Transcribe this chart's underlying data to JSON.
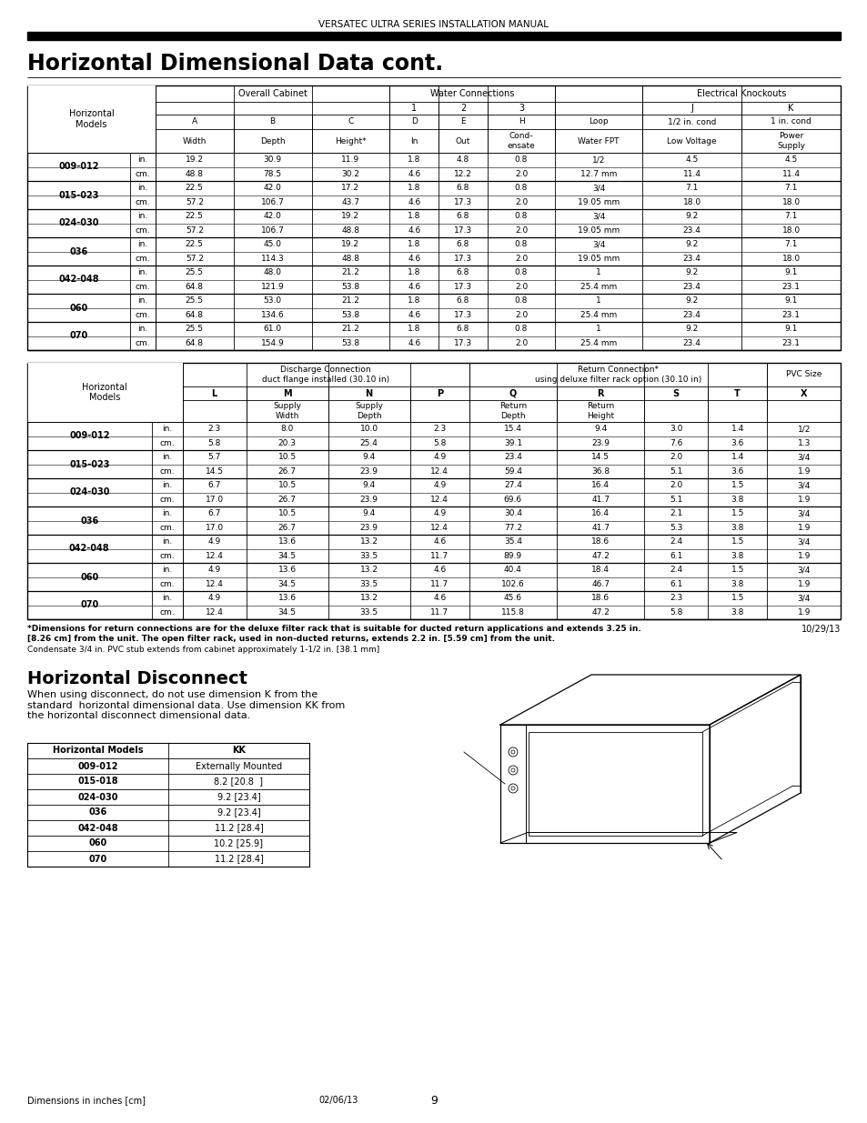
{
  "header_text": "VERSATEC ULTRA SERIES INSTALLATION MANUAL",
  "title": "Horizontal Dimensional Data cont.",
  "table1_data": [
    [
      "009-012",
      "in.",
      "19.2",
      "30.9",
      "11.9",
      "1.8",
      "4.8",
      "0.8",
      "1/2",
      "4.5",
      "4.5"
    ],
    [
      "009-012",
      "cm.",
      "48.8",
      "78.5",
      "30.2",
      "4.6",
      "12.2",
      "2.0",
      "12.7 mm",
      "11.4",
      "11.4"
    ],
    [
      "015-023",
      "in.",
      "22.5",
      "42.0",
      "17.2",
      "1.8",
      "6.8",
      "0.8",
      "3/4",
      "7.1",
      "7.1"
    ],
    [
      "015-023",
      "cm.",
      "57.2",
      "106.7",
      "43.7",
      "4.6",
      "17.3",
      "2.0",
      "19.05 mm",
      "18.0",
      "18.0"
    ],
    [
      "024-030",
      "in.",
      "22.5",
      "42.0",
      "19.2",
      "1.8",
      "6.8",
      "0.8",
      "3/4",
      "9.2",
      "7.1"
    ],
    [
      "024-030",
      "cm.",
      "57.2",
      "106.7",
      "48.8",
      "4.6",
      "17.3",
      "2.0",
      "19.05 mm",
      "23.4",
      "18.0"
    ],
    [
      "036",
      "in.",
      "22.5",
      "45.0",
      "19.2",
      "1.8",
      "6.8",
      "0.8",
      "3/4",
      "9.2",
      "7.1"
    ],
    [
      "036",
      "cm.",
      "57.2",
      "114.3",
      "48.8",
      "4.6",
      "17.3",
      "2.0",
      "19.05 mm",
      "23.4",
      "18.0"
    ],
    [
      "042-048",
      "in.",
      "25.5",
      "48.0",
      "21.2",
      "1.8",
      "6.8",
      "0.8",
      "1",
      "9.2",
      "9.1"
    ],
    [
      "042-048",
      "cm.",
      "64.8",
      "121.9",
      "53.8",
      "4.6",
      "17.3",
      "2.0",
      "25.4 mm",
      "23.4",
      "23.1"
    ],
    [
      "060",
      "in.",
      "25.5",
      "53.0",
      "21.2",
      "1.8",
      "6.8",
      "0.8",
      "1",
      "9.2",
      "9.1"
    ],
    [
      "060",
      "cm.",
      "64.8",
      "134.6",
      "53.8",
      "4.6",
      "17.3",
      "2.0",
      "25.4 mm",
      "23.4",
      "23.1"
    ],
    [
      "070",
      "in.",
      "25.5",
      "61.0",
      "21.2",
      "1.8",
      "6.8",
      "0.8",
      "1",
      "9.2",
      "9.1"
    ],
    [
      "070",
      "cm.",
      "64.8",
      "154.9",
      "53.8",
      "4.6",
      "17.3",
      "2.0",
      "25.4 mm",
      "23.4",
      "23.1"
    ]
  ],
  "table2_data": [
    [
      "009-012",
      "in.",
      "2.3",
      "8.0",
      "10.0",
      "2.3",
      "15.4",
      "9.4",
      "3.0",
      "1.4",
      "1/2"
    ],
    [
      "009-012",
      "cm.",
      "5.8",
      "20.3",
      "25.4",
      "5.8",
      "39.1",
      "23.9",
      "7.6",
      "3.6",
      "1.3"
    ],
    [
      "015-023",
      "in.",
      "5.7",
      "10.5",
      "9.4",
      "4.9",
      "23.4",
      "14.5",
      "2.0",
      "1.4",
      "3/4"
    ],
    [
      "015-023",
      "cm.",
      "14.5",
      "26.7",
      "23.9",
      "12.4",
      "59.4",
      "36.8",
      "5.1",
      "3.6",
      "1.9"
    ],
    [
      "024-030",
      "in.",
      "6.7",
      "10.5",
      "9.4",
      "4.9",
      "27.4",
      "16.4",
      "2.0",
      "1.5",
      "3/4"
    ],
    [
      "024-030",
      "cm.",
      "17.0",
      "26.7",
      "23.9",
      "12.4",
      "69.6",
      "41.7",
      "5.1",
      "3.8",
      "1.9"
    ],
    [
      "036",
      "in.",
      "6.7",
      "10.5",
      "9.4",
      "4.9",
      "30.4",
      "16.4",
      "2.1",
      "1.5",
      "3/4"
    ],
    [
      "036",
      "cm.",
      "17.0",
      "26.7",
      "23.9",
      "12.4",
      "77.2",
      "41.7",
      "5.3",
      "3.8",
      "1.9"
    ],
    [
      "042-048",
      "in.",
      "4.9",
      "13.6",
      "13.2",
      "4.6",
      "35.4",
      "18.6",
      "2.4",
      "1.5",
      "3/4"
    ],
    [
      "042-048",
      "cm.",
      "12.4",
      "34.5",
      "33.5",
      "11.7",
      "89.9",
      "47.2",
      "6.1",
      "3.8",
      "1.9"
    ],
    [
      "060",
      "in.",
      "4.9",
      "13.6",
      "13.2",
      "4.6",
      "40.4",
      "18.4",
      "2.4",
      "1.5",
      "3/4"
    ],
    [
      "060",
      "cm.",
      "12.4",
      "34.5",
      "33.5",
      "11.7",
      "102.6",
      "46.7",
      "6.1",
      "3.8",
      "1.9"
    ],
    [
      "070",
      "in.",
      "4.9",
      "13.6",
      "13.2",
      "4.6",
      "45.6",
      "18.6",
      "2.3",
      "1.5",
      "3/4"
    ],
    [
      "070",
      "cm.",
      "12.4",
      "34.5",
      "33.5",
      "11.7",
      "115.8",
      "47.2",
      "5.8",
      "3.8",
      "1.9"
    ]
  ],
  "table3_rows": [
    [
      "009-012",
      "Externally Mounted"
    ],
    [
      "015-018",
      "8.2 [20.8  ]"
    ],
    [
      "024-030",
      "9.2 [23.4]"
    ],
    [
      "036",
      "9.2 [23.4]"
    ],
    [
      "042-048",
      "11.2 [28.4]"
    ],
    [
      "060",
      "10.2 [25.9]"
    ],
    [
      "070",
      "11.2 [28.4]"
    ]
  ],
  "footnote1_bold": "*Dimensions for return connections are for the deluxe filter rack that is suitable for ducted return applications and extends 3.25 in.\n[8.26 cm] from the unit. The open filter rack, used in non-ducted returns, extends 2.2 in. [5.59 cm] from the unit.",
  "footnote2": "Condensate 3/4 in. PVC stub extends from cabinet approximately 1-1/2 in. [38.1 mm]",
  "date1": "10/29/13",
  "section2_title": "Horizontal Disconnect",
  "section2_text": "When using disconnect, do not use dimension K from the\nstandard  horizontal dimensional data. Use dimension KK from\nthe horizontal disconnect dimensional data.",
  "footer_left": "Dimensions in inches [cm]",
  "footer_right": "02/06/13",
  "page_number": "9"
}
